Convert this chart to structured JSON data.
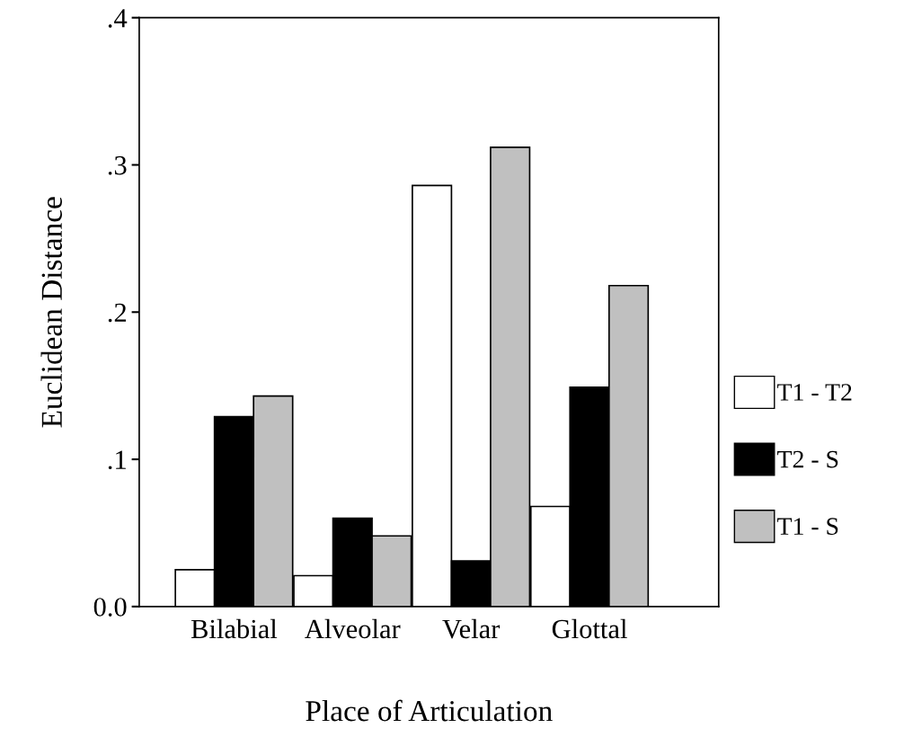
{
  "chart_data": {
    "type": "bar",
    "xlabel": "Place of Articulation",
    "ylabel": "Euclidean Distance",
    "categories": [
      "Bilabial",
      "Alveolar",
      "Velar",
      "Glottal"
    ],
    "series": [
      {
        "name": "T1 - T2",
        "color": "#ffffff",
        "values": [
          0.025,
          0.021,
          0.286,
          0.068
        ]
      },
      {
        "name": "T2 - S",
        "color": "#000000",
        "values": [
          0.129,
          0.06,
          0.031,
          0.149
        ]
      },
      {
        "name": "T1 - S",
        "color": "#c0c0c0",
        "values": [
          0.143,
          0.048,
          0.312,
          0.218
        ]
      }
    ],
    "ylim": [
      0,
      0.4
    ],
    "yticks": [
      {
        "value": 0,
        "label": "0.0"
      },
      {
        "value": 0.1,
        "label": ".1"
      },
      {
        "value": 0.2,
        "label": ".2"
      },
      {
        "value": 0.3,
        "label": ".3"
      },
      {
        "value": 0.4,
        "label": ".4"
      }
    ],
    "grid": false,
    "legend": "right"
  }
}
